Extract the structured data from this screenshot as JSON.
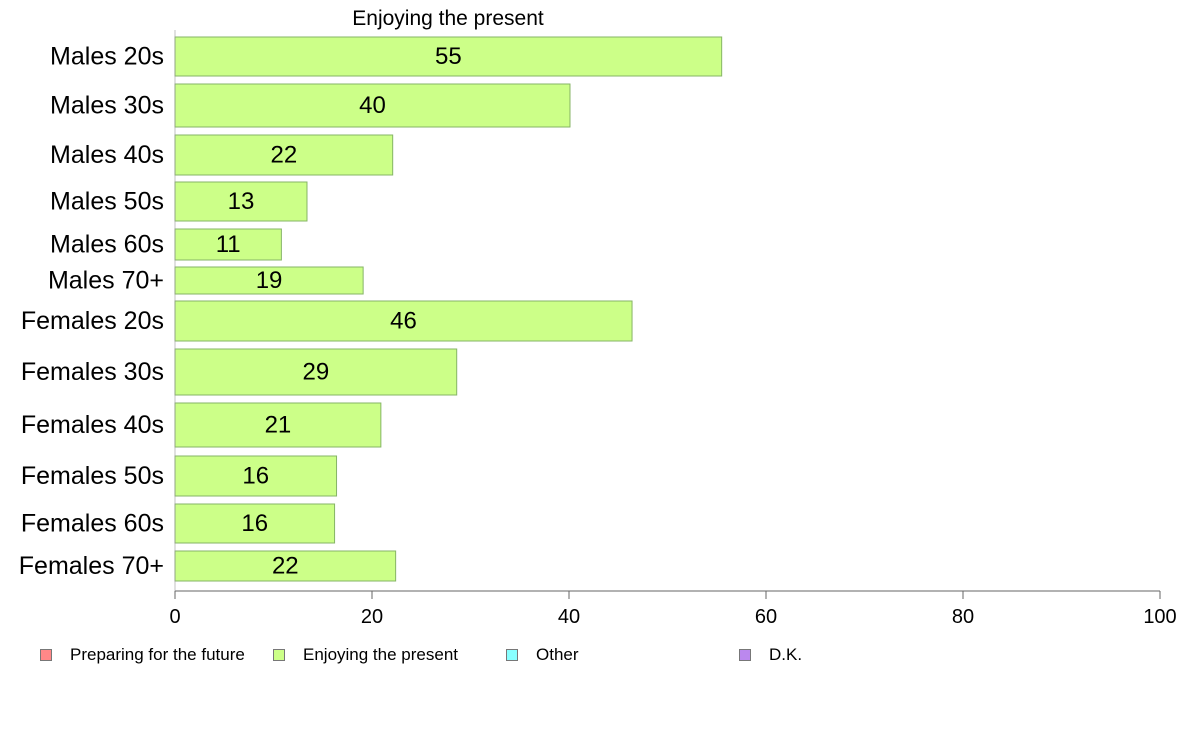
{
  "chart_data": {
    "type": "bar",
    "orientation": "horizontal",
    "title": "Enjoying the present",
    "categories": [
      "Males 20s",
      "Males 30s",
      "Males 40s",
      "Males 50s",
      "Males 60s",
      "Males 70+",
      "Females 20s",
      "Females 30s",
      "Females 40s",
      "Females 50s",
      "Females 60s",
      "Females 70+"
    ],
    "series": [
      {
        "name": "Enjoying the present",
        "values": [
          55.5,
          40.1,
          22.1,
          13.4,
          10.8,
          19.1,
          46.4,
          28.6,
          20.9,
          16.4,
          16.2,
          22.4
        ],
        "labels": [
          "55",
          "40",
          "22",
          "13",
          "11",
          "19",
          "46",
          "29",
          "21",
          "16",
          "16",
          "22"
        ],
        "color": "#ccff88"
      }
    ],
    "xlim": [
      0,
      100
    ],
    "xticks": [
      "0",
      "20",
      "40",
      "60",
      "80",
      "100"
    ],
    "grid": false
  },
  "legend": {
    "placement": "bottom",
    "items": [
      {
        "label": "Preparing for the future",
        "color": "#ff8888"
      },
      {
        "label": "Enjoying the present",
        "color": "#ccff88"
      },
      {
        "label": "Other",
        "color": "#88ffff"
      },
      {
        "label": "D.K.",
        "color": "#bb88ee"
      }
    ]
  }
}
